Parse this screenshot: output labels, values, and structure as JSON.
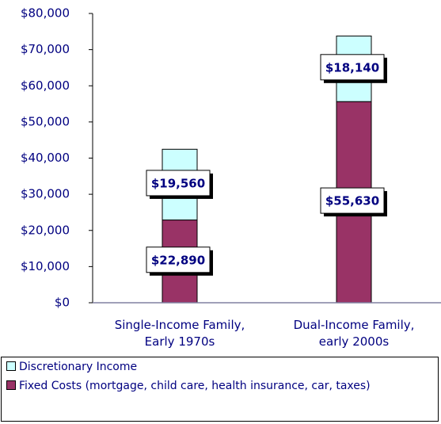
{
  "chart_data": {
    "type": "stacked_bar",
    "categories": [
      "Single-Income Family,\nEarly 1970s",
      "Dual-Income Family,\nearly 2000s"
    ],
    "series": [
      {
        "name": "Fixed Costs (mortgage, child care, health insurance, car, taxes)",
        "color": "#993366",
        "values": [
          22890,
          55630
        ],
        "value_labels": [
          "$22,890",
          "$55,630"
        ]
      },
      {
        "name": "Discretionary Income",
        "color": "#ccffff",
        "values": [
          19560,
          18140
        ],
        "value_labels": [
          "$19,560",
          "$18,140"
        ]
      }
    ],
    "ylim": [
      0,
      80000
    ],
    "yticks": [
      {
        "value": 0,
        "label": "$0"
      },
      {
        "value": 10000,
        "label": "$10,000"
      },
      {
        "value": 20000,
        "label": "$20,000"
      },
      {
        "value": 30000,
        "label": "$30,000"
      },
      {
        "value": 40000,
        "label": "$40,000"
      },
      {
        "value": 50000,
        "label": "$50,000"
      },
      {
        "value": 60000,
        "label": "$60,000"
      },
      {
        "value": 70000,
        "label": "$70,000"
      },
      {
        "value": 80000,
        "label": "$80,000"
      }
    ],
    "grid": false,
    "legend": "bottom"
  }
}
